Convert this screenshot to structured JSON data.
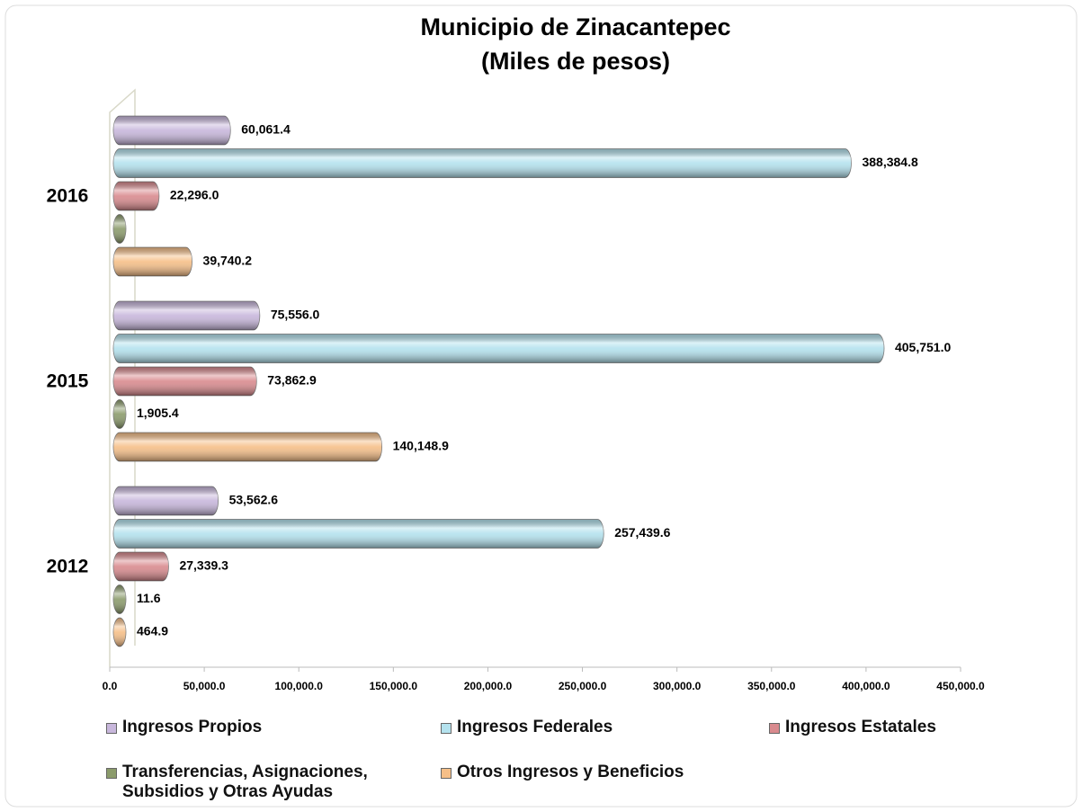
{
  "chart_data": {
    "type": "bar",
    "orientation": "horizontal",
    "title": "Municipio de Zinacantepec",
    "subtitle": "(Miles de pesos)",
    "categories": [
      "2016",
      "2015",
      "2012"
    ],
    "series": [
      {
        "name": "Ingresos Propios",
        "color": "#c8b7dc",
        "values": [
          60061.4,
          75556.0,
          53562.6
        ],
        "value_labels": [
          "60,061.4",
          "75,556.0",
          "53,562.6"
        ]
      },
      {
        "name": "Ingresos Federales",
        "color": "#b4e2ee",
        "values": [
          388384.8,
          405751.0,
          257439.6
        ],
        "value_labels": [
          "388,384.8",
          "405,751.0",
          "257,439.6"
        ]
      },
      {
        "name": "Ingresos Estatales",
        "color": "#d98a8e",
        "values": [
          22296.0,
          73862.9,
          27339.3
        ],
        "value_labels": [
          "22,296.0",
          "73,862.9",
          "27,339.3"
        ]
      },
      {
        "name": "Transferencias, Asignaciones, Subsidios y Otras Ayudas",
        "color": "#8b9b6b",
        "values": [
          0,
          1905.4,
          11.6
        ],
        "value_labels": [
          null,
          "1,905.4",
          "11.6"
        ]
      },
      {
        "name": "Otros Ingresos y Beneficios",
        "color": "#f6bf88",
        "values": [
          39740.2,
          140148.9,
          464.9
        ],
        "value_labels": [
          "39,740.2",
          "140,148.9",
          "464.9"
        ]
      }
    ],
    "xlim": [
      0,
      450000
    ],
    "xticks": [
      {
        "value": 0,
        "label": "0.0"
      },
      {
        "value": 50000,
        "label": "50,000.0"
      },
      {
        "value": 100000,
        "label": "100,000.0"
      },
      {
        "value": 150000,
        "label": "150,000.0"
      },
      {
        "value": 200000,
        "label": "200,000.0"
      },
      {
        "value": 250000,
        "label": "250,000.0"
      },
      {
        "value": 300000,
        "label": "300,000.0"
      },
      {
        "value": 350000,
        "label": "350,000.0"
      },
      {
        "value": 400000,
        "label": "400,000.0"
      },
      {
        "value": 450000,
        "label": "450,000.0"
      }
    ],
    "legend": "bottom"
  }
}
